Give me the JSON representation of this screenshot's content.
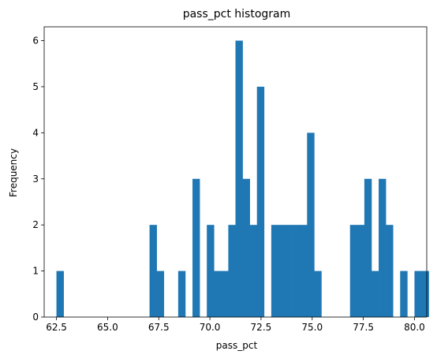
{
  "chart_data": {
    "type": "bar",
    "title": "pass_pct histogram",
    "xlabel": "pass_pct",
    "ylabel": "Frequency",
    "xlim": [
      61.9,
      80.6
    ],
    "ylim": [
      0,
      6.3
    ],
    "xticks": [
      62.5,
      65.0,
      67.5,
      70.0,
      72.5,
      75.0,
      77.5,
      80.0
    ],
    "xtick_labels": [
      "62.5",
      "65.0",
      "67.5",
      "70.0",
      "72.5",
      "75.0",
      "77.5",
      "80.0"
    ],
    "yticks": [
      0,
      1,
      2,
      3,
      4,
      5,
      6
    ],
    "ytick_labels": [
      "0",
      "1",
      "2",
      "3",
      "4",
      "5",
      "6"
    ],
    "grid": false,
    "color": "#1f77b4",
    "bin_start": 62.5,
    "bin_width": 0.35,
    "counts": [
      1,
      0,
      0,
      0,
      0,
      0,
      0,
      0,
      0,
      0,
      0,
      0,
      0,
      2,
      1,
      0,
      0,
      1,
      0,
      3,
      0,
      2,
      1,
      1,
      2,
      6,
      3,
      2,
      5,
      0,
      2,
      2,
      2,
      2,
      2,
      4,
      1,
      0,
      0,
      0,
      0,
      2,
      2,
      3,
      1,
      3,
      2,
      0,
      1,
      0,
      1,
      1
    ]
  }
}
